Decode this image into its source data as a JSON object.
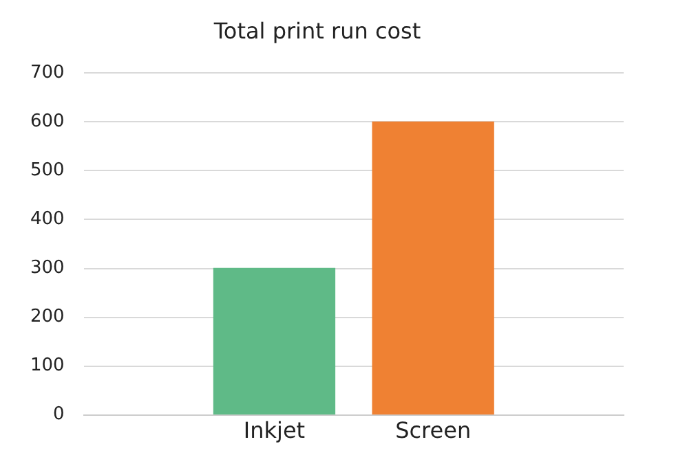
{
  "chart_data": {
    "type": "bar",
    "title": "Total print run cost",
    "categories": [
      "Inkjet",
      "Screen"
    ],
    "values": [
      300,
      600
    ],
    "colors": [
      "#5fba87",
      "#ef8133"
    ],
    "ylim": [
      0,
      700
    ],
    "yticks": [
      0,
      100,
      200,
      300,
      400,
      500,
      600,
      700
    ],
    "grid": "y",
    "legend": false
  }
}
